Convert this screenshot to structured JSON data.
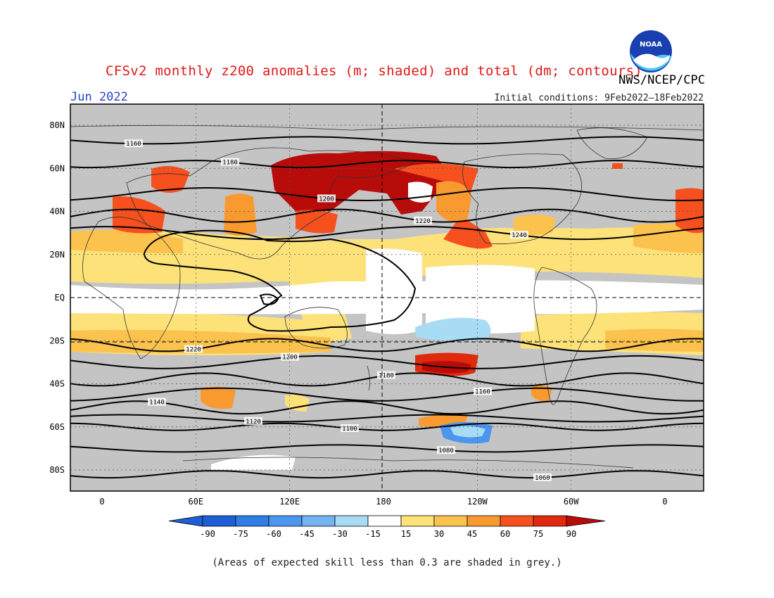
{
  "header": {
    "title": "CFSv2 monthly z200 anomalies (m; shaded) and total (dm; contours)",
    "month": "Jun 2022",
    "agency": "NWS/NCEP/CPC",
    "initial_conditions": "Initial conditions: 9Feb2022–18Feb2022",
    "logo_text": "NOAA"
  },
  "map": {
    "lat_labels": [
      "80N",
      "60N",
      "40N",
      "20N",
      "EQ",
      "20S",
      "40S",
      "60S",
      "80S"
    ],
    "lon_labels": [
      "0",
      "60E",
      "120E",
      "180",
      "120W",
      "60W",
      "0"
    ],
    "contours": [
      {
        "value": "1160",
        "lat": 73
      },
      {
        "value": "1180",
        "lat": 62
      },
      {
        "value": "1200",
        "lat": 48
      },
      {
        "value": "1220",
        "lat": 38
      },
      {
        "value": "1240",
        "lat": 30
      },
      {
        "value": "1220",
        "lat": -22
      },
      {
        "value": "1200",
        "lat": -30
      },
      {
        "value": "1180",
        "lat": -38
      },
      {
        "value": "1160",
        "lat": -45
      },
      {
        "value": "1140",
        "lat": -51
      },
      {
        "value": "1120",
        "lat": -56
      },
      {
        "value": "1100",
        "lat": -60
      },
      {
        "value": "1080",
        "lat": -70
      },
      {
        "value": "1060",
        "lat": -82
      }
    ]
  },
  "colorbar": {
    "labels": [
      "-90",
      "-75",
      "-60",
      "-45",
      "-30",
      "-15",
      "15",
      "30",
      "45",
      "60",
      "75",
      "90"
    ],
    "colors": [
      "#1e5fd8",
      "#2f7ee6",
      "#4b96ee",
      "#74b4f2",
      "#a8dcf4",
      "#ffffff",
      "#fde27a",
      "#fcc24e",
      "#f99a30",
      "#f5501e",
      "#e02a0e",
      "#b80c0a"
    ]
  },
  "footnote": "(Areas of expected skill less than 0.3 are shaded in grey.)"
}
